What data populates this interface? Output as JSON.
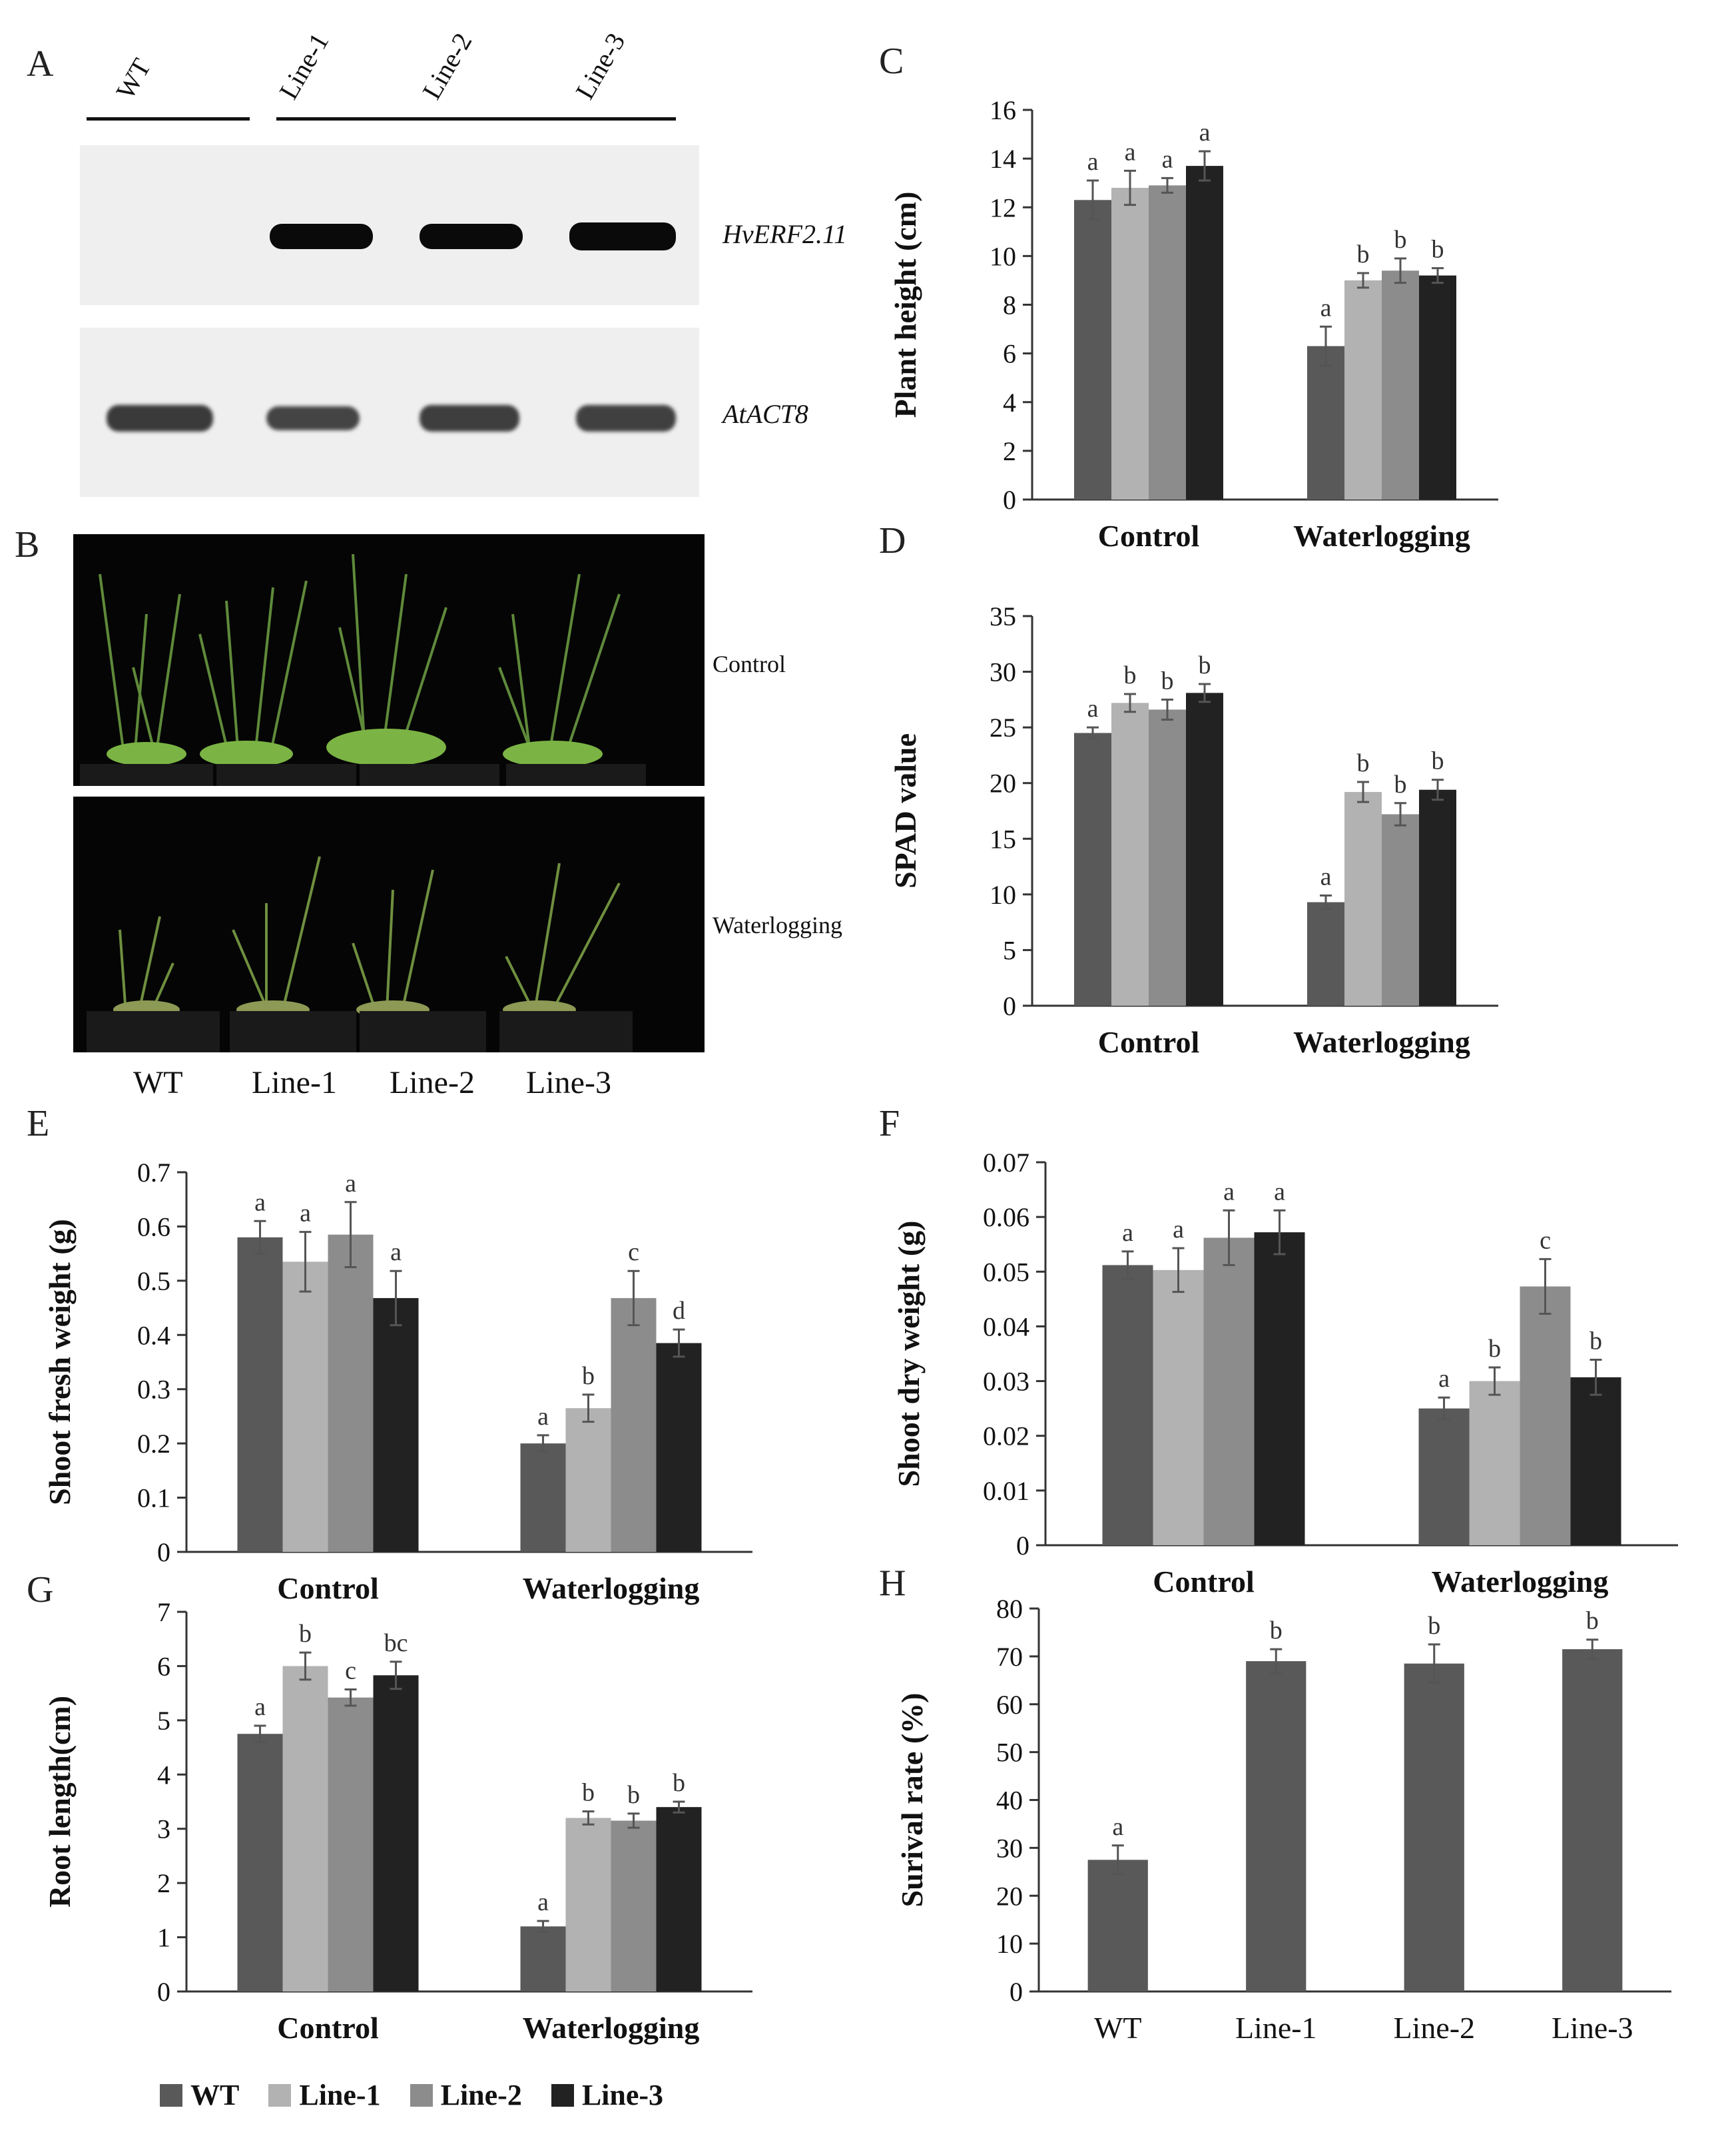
{
  "panels": {
    "A": {
      "letter": "A",
      "lanes": [
        "WT",
        "Line-1",
        "Line-2",
        "Line-3"
      ],
      "genes": [
        "HvERF2.11",
        "AtACT8"
      ]
    },
    "B": {
      "letter": "B",
      "conditions": [
        "Control",
        "Waterlogging"
      ],
      "lanes": [
        "WT",
        "Line-1",
        "Line-2",
        "Line-3"
      ]
    }
  },
  "legend": {
    "items": [
      {
        "label": "WT",
        "color": "#595959"
      },
      {
        "label": "Line-1",
        "color": "#b2b2b2"
      },
      {
        "label": "Line-2",
        "color": "#8c8c8c"
      },
      {
        "label": "Line-3",
        "color": "#222222"
      }
    ]
  },
  "chart_data": [
    {
      "panel": "C",
      "type": "bar",
      "title": "",
      "categories": [
        "Control",
        "Waterlogging"
      ],
      "ylabel": "Plant height (cm)",
      "ylim": [
        0,
        16
      ],
      "yticks": [
        0,
        2,
        4,
        6,
        8,
        10,
        12,
        14,
        16
      ],
      "series": [
        {
          "name": "WT",
          "values": [
            12.3,
            6.3
          ],
          "errors": [
            0.8,
            0.8
          ],
          "letters": [
            "a",
            "a"
          ]
        },
        {
          "name": "Line-1",
          "values": [
            12.8,
            9.0
          ],
          "errors": [
            0.7,
            0.3
          ],
          "letters": [
            "a",
            "b"
          ]
        },
        {
          "name": "Line-2",
          "values": [
            12.9,
            9.4
          ],
          "errors": [
            0.3,
            0.5
          ],
          "letters": [
            "a",
            "b"
          ]
        },
        {
          "name": "Line-3",
          "values": [
            13.7,
            9.2
          ],
          "errors": [
            0.6,
            0.3
          ],
          "letters": [
            "a",
            "b"
          ]
        }
      ]
    },
    {
      "panel": "D",
      "type": "bar",
      "title": "",
      "categories": [
        "Control",
        "Waterlogging"
      ],
      "ylabel": "SPAD value",
      "ylim": [
        0,
        35
      ],
      "yticks": [
        0,
        5,
        10,
        15,
        20,
        25,
        30,
        35
      ],
      "series": [
        {
          "name": "WT",
          "values": [
            24.5,
            9.3
          ],
          "errors": [
            0.5,
            0.6
          ],
          "letters": [
            "a",
            "a"
          ]
        },
        {
          "name": "Line-1",
          "values": [
            27.2,
            19.2
          ],
          "errors": [
            0.8,
            0.9
          ],
          "letters": [
            "b",
            "b"
          ]
        },
        {
          "name": "Line-2",
          "values": [
            26.6,
            17.2
          ],
          "errors": [
            0.9,
            1.0
          ],
          "letters": [
            "b",
            "b"
          ]
        },
        {
          "name": "Line-3",
          "values": [
            28.1,
            19.4
          ],
          "errors": [
            0.8,
            0.9
          ],
          "letters": [
            "b",
            "b"
          ]
        }
      ]
    },
    {
      "panel": "E",
      "type": "bar",
      "title": "",
      "categories": [
        "Control",
        "Waterlogging"
      ],
      "ylabel": "Shoot fresh weight (g)",
      "ylim": [
        0,
        0.7
      ],
      "yticks": [
        0,
        0.1,
        0.2,
        0.3,
        0.4,
        0.5,
        0.6,
        0.7
      ],
      "series": [
        {
          "name": "WT",
          "values": [
            0.58,
            0.2
          ],
          "errors": [
            0.03,
            0.015
          ],
          "letters": [
            "a",
            "a"
          ]
        },
        {
          "name": "Line-1",
          "values": [
            0.535,
            0.265
          ],
          "errors": [
            0.055,
            0.025
          ],
          "letters": [
            "a",
            "b"
          ]
        },
        {
          "name": "Line-2",
          "values": [
            0.585,
            0.468
          ],
          "errors": [
            0.06,
            0.05
          ],
          "letters": [
            "a",
            "c"
          ]
        },
        {
          "name": "Line-3",
          "values": [
            0.468,
            0.385
          ],
          "errors": [
            0.05,
            0.025
          ],
          "letters": [
            "a",
            "d"
          ]
        }
      ]
    },
    {
      "panel": "F",
      "type": "bar",
      "title": "",
      "categories": [
        "Control",
        "Waterlogging"
      ],
      "ylabel": "Shoot dry weight (g)",
      "ylim": [
        0,
        0.07
      ],
      "yticks": [
        0,
        0.01,
        0.02,
        0.03,
        0.04,
        0.05,
        0.06,
        0.07
      ],
      "series": [
        {
          "name": "WT",
          "values": [
            0.0512,
            0.025
          ],
          "errors": [
            0.0025,
            0.002
          ],
          "letters": [
            "a",
            "a"
          ]
        },
        {
          "name": "Line-1",
          "values": [
            0.0503,
            0.03
          ],
          "errors": [
            0.004,
            0.0025
          ],
          "letters": [
            "a",
            "b"
          ]
        },
        {
          "name": "Line-2",
          "values": [
            0.0562,
            0.0473
          ],
          "errors": [
            0.005,
            0.005
          ],
          "letters": [
            "a",
            "c"
          ]
        },
        {
          "name": "Line-3",
          "values": [
            0.0572,
            0.0307
          ],
          "errors": [
            0.004,
            0.0032
          ],
          "letters": [
            "a",
            "b"
          ]
        }
      ]
    },
    {
      "panel": "G",
      "type": "bar",
      "title": "",
      "categories": [
        "Control",
        "Waterlogging"
      ],
      "ylabel": "Root length(cm)",
      "ylim": [
        0,
        7
      ],
      "yticks": [
        0,
        1,
        2,
        3,
        4,
        5,
        6,
        7
      ],
      "series": [
        {
          "name": "WT",
          "values": [
            4.75,
            1.2
          ],
          "errors": [
            0.15,
            0.1
          ],
          "letters": [
            "a",
            "a"
          ]
        },
        {
          "name": "Line-1",
          "values": [
            6.0,
            3.2
          ],
          "errors": [
            0.25,
            0.12
          ],
          "letters": [
            "b",
            "b"
          ]
        },
        {
          "name": "Line-2",
          "values": [
            5.42,
            3.15
          ],
          "errors": [
            0.15,
            0.13
          ],
          "letters": [
            "c",
            "b"
          ]
        },
        {
          "name": "Line-3",
          "values": [
            5.83,
            3.4
          ],
          "errors": [
            0.25,
            0.1
          ],
          "letters": [
            "bc",
            "b"
          ]
        }
      ]
    },
    {
      "panel": "H",
      "type": "bar",
      "title": "",
      "categories": [
        "WT",
        "Line-1",
        "Line-2",
        "Line-3"
      ],
      "ylabel": "Surival rate (%)",
      "ylim": [
        0,
        80
      ],
      "yticks": [
        0,
        10,
        20,
        30,
        40,
        50,
        60,
        70,
        80
      ],
      "series": [
        {
          "name": "",
          "values": [
            27.5,
            69,
            68.5,
            71.5
          ],
          "errors": [
            3,
            2.5,
            4,
            2
          ],
          "letters": [
            "a",
            "b",
            "b",
            "b"
          ]
        }
      ]
    }
  ]
}
